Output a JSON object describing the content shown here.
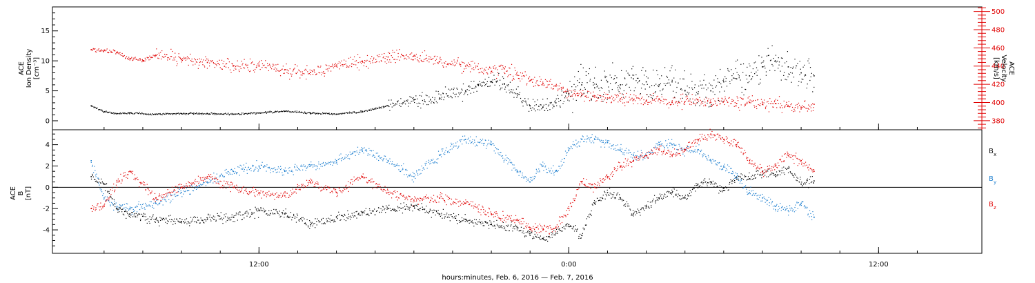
{
  "chart_data": [
    {
      "type": "scatter",
      "panel": "plasma",
      "ylabel_left": [
        "ACE",
        "Ion Density",
        "[cm⁻³]"
      ],
      "ylabel_right": [
        "ACE",
        "Velocity",
        "[km/s]"
      ],
      "ylim_left": [
        -1.5,
        19
      ],
      "ylim_right": [
        370,
        505
      ],
      "left_ticks": [
        "0",
        "5",
        "10",
        "15"
      ],
      "right_ticks": [
        "380",
        "400",
        "420",
        "440",
        "460",
        "480",
        "500"
      ],
      "colors": {
        "density": "#000000",
        "velocity": "#e00000"
      },
      "series": [
        {
          "name": "Ion Density",
          "axis": "left",
          "color": "#000000",
          "x": [
            5.5,
            6,
            6.5,
            7,
            8,
            9,
            10,
            11,
            12,
            13,
            14,
            15,
            16,
            17,
            18,
            19,
            20,
            20.5,
            21,
            21.5,
            22,
            22.5,
            23,
            23.5,
            24,
            24.5,
            25,
            25.5,
            26,
            26.5,
            27,
            27.5,
            28,
            28.5,
            29,
            29.5,
            30,
            30.5,
            31,
            31.5,
            32,
            32.5,
            33,
            33.5
          ],
          "y": [
            2.5,
            1.5,
            1.2,
            1.3,
            1.1,
            1.2,
            1.2,
            1.1,
            1.3,
            1.6,
            1.3,
            1.1,
            1.5,
            2.5,
            3.5,
            3.8,
            5,
            6,
            6.5,
            6.2,
            4.5,
            2.5,
            2.3,
            3,
            4.5,
            6,
            5.5,
            6.5,
            6,
            7,
            6.5,
            6,
            6.5,
            5,
            4.5,
            5,
            6.5,
            7,
            7.5,
            9,
            10,
            9,
            8,
            7.5
          ]
        },
        {
          "name": "Velocity",
          "axis": "right",
          "color": "#e00000",
          "x": [
            5.5,
            6,
            6.5,
            7,
            7.5,
            8,
            9,
            10,
            11,
            12,
            13,
            14,
            15,
            16,
            17,
            18,
            19,
            20,
            21,
            21.5,
            22,
            22.5,
            23,
            23.5,
            24,
            24.5,
            25,
            25.5,
            26,
            26.5,
            27,
            27.5,
            28,
            28.5,
            29,
            29.5,
            30,
            30.5,
            31,
            31.5,
            32,
            32.5,
            33,
            33.5
          ],
          "y": [
            458,
            457,
            455,
            448,
            446,
            452,
            447,
            444,
            440,
            441,
            436,
            433,
            440,
            445,
            450,
            451,
            445,
            440,
            434,
            437,
            430,
            424,
            421,
            418,
            410,
            408,
            406,
            405,
            404,
            403,
            402,
            404,
            400,
            401,
            403,
            400,
            401,
            399,
            400,
            398,
            399,
            396,
            394,
            398
          ]
        }
      ]
    },
    {
      "type": "scatter",
      "panel": "magnetic-field",
      "ylabel_left": [
        "ACE",
        "B",
        "[nT]"
      ],
      "ylim": [
        -6.2,
        5.4
      ],
      "left_ticks": [
        "-4",
        "-2",
        "0",
        "2",
        "4"
      ],
      "colors": {
        "bx": "#000000",
        "by": "#1e7fcf",
        "bz": "#e00000"
      },
      "series": [
        {
          "name": "Bx",
          "color": "#000000",
          "x": [
            5.5,
            6,
            6.5,
            7,
            8,
            9,
            10,
            11,
            12,
            13,
            14,
            15,
            16,
            17,
            18,
            19,
            20,
            21,
            22,
            22.5,
            23,
            23.5,
            24,
            24.5,
            25,
            25.5,
            26,
            26.5,
            27,
            27.5,
            28,
            28.5,
            29,
            29.5,
            30,
            30.5,
            31,
            31.5,
            32,
            32.5,
            33,
            33.5
          ],
          "y": [
            1,
            0.3,
            -2,
            -2.5,
            -3,
            -3.2,
            -3,
            -2.8,
            -2.2,
            -2.5,
            -3.5,
            -2.8,
            -2.4,
            -2,
            -1.8,
            -2.5,
            -3,
            -3.5,
            -3.8,
            -4.5,
            -4.8,
            -4.3,
            -3.5,
            -4.5,
            -1.5,
            -0.5,
            -1,
            -2.5,
            -1.8,
            -1,
            -0.5,
            -1,
            0.3,
            0.5,
            -0.3,
            1,
            0.8,
            1.5,
            1.2,
            1.8,
            0.3,
            0.6
          ]
        },
        {
          "name": "By",
          "color": "#1e7fcf",
          "x": [
            5.5,
            6,
            6.5,
            7,
            8,
            9,
            10,
            11,
            12,
            13,
            14,
            15,
            16,
            17,
            18,
            19,
            20,
            21,
            22,
            22.5,
            23,
            23.5,
            24,
            24.5,
            25,
            25.5,
            26,
            26.5,
            27,
            27.5,
            28,
            28.5,
            29,
            29.5,
            30,
            30.5,
            31,
            31.5,
            32,
            32.5,
            33,
            33.5
          ],
          "y": [
            2.5,
            -1,
            -1.8,
            -2,
            -1.5,
            -0.5,
            0.5,
            1.5,
            2,
            1.5,
            2,
            2.5,
            3.5,
            2.5,
            1,
            3,
            4.5,
            4,
            1.5,
            0.5,
            2,
            1.5,
            3.5,
            4.5,
            4.5,
            4.2,
            3.5,
            3,
            3,
            4,
            4,
            3.5,
            3.5,
            2.5,
            2,
            1,
            -0.5,
            -1,
            -1.8,
            -2.2,
            -1.5,
            -2.8
          ]
        },
        {
          "name": "Bz",
          "color": "#e00000",
          "x": [
            5.5,
            6,
            6.5,
            7,
            8,
            9,
            10,
            11,
            12,
            13,
            14,
            15,
            16,
            17,
            18,
            19,
            20,
            21,
            22,
            22.5,
            23,
            23.5,
            24,
            24.5,
            25,
            25.5,
            26,
            26.5,
            27,
            27.5,
            28,
            28.5,
            29,
            29.5,
            30,
            30.5,
            31,
            31.5,
            32,
            32.5,
            33,
            33.5
          ],
          "y": [
            -2,
            -1.8,
            0.5,
            1.5,
            -1,
            0,
            1,
            0,
            -0.5,
            -0.8,
            0.5,
            -0.5,
            1,
            -0.5,
            -1.2,
            -1,
            -1.5,
            -2.5,
            -3,
            -3.8,
            -4,
            -3.8,
            -2,
            0.5,
            0,
            1,
            2,
            2.5,
            3,
            3.5,
            3,
            3.5,
            4.5,
            5,
            4.5,
            4,
            2.5,
            1.5,
            2,
            3,
            2.5,
            1.5
          ]
        }
      ]
    }
  ],
  "legend": {
    "bx_label": "B",
    "bx_sub": "x",
    "by_label": "B",
    "by_sub": "y",
    "bz_label": "B",
    "bz_sub": "z"
  },
  "x_axis": {
    "tick_labels": [
      "12:00",
      "0:00",
      "12:00"
    ],
    "tick_hours": [
      12,
      24,
      36
    ],
    "xlim_hours": [
      4,
      40
    ],
    "xlabel": "hours:minutes, Feb.  6, 2016 — Feb.  7, 2016"
  }
}
